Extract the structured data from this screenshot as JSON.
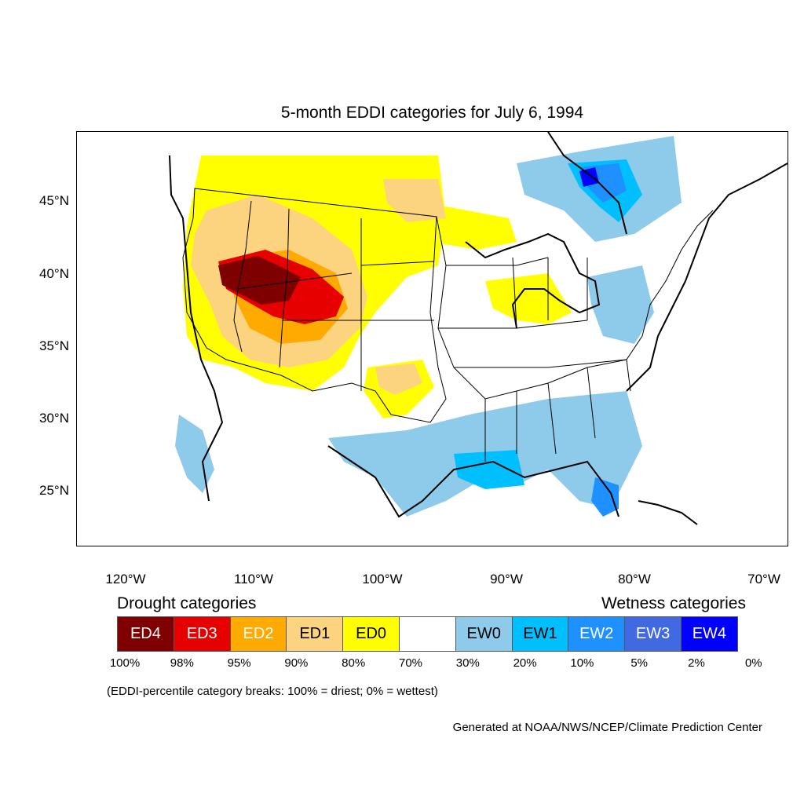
{
  "title": "5-month EDDI categories for July 6, 1994",
  "lat_labels": [
    "45°N",
    "40°N",
    "35°N",
    "30°N",
    "25°N"
  ],
  "lon_labels": [
    "120°W",
    "110°W",
    "100°W",
    "90°W",
    "80°W",
    "70°W"
  ],
  "legend": {
    "drought_heading": "Drought categories",
    "wetness_heading": "Wetness categories",
    "categories": [
      {
        "label": "ED4",
        "color": "#7f0000",
        "text_color": "#ffffff"
      },
      {
        "label": "ED3",
        "color": "#e60000",
        "text_color": "#ffffff"
      },
      {
        "label": "ED2",
        "color": "#ffaa00",
        "text_color": "#ffffff"
      },
      {
        "label": "ED1",
        "color": "#fcd37f",
        "text_color": "#000000"
      },
      {
        "label": "ED0",
        "color": "#ffff00",
        "text_color": "#000000"
      },
      {
        "label": "",
        "color": "#ffffff",
        "text_color": "#000000"
      },
      {
        "label": "EW0",
        "color": "#8ecae9",
        "text_color": "#000000"
      },
      {
        "label": "EW1",
        "color": "#00bfff",
        "text_color": "#000000"
      },
      {
        "label": "EW2",
        "color": "#1e90ff",
        "text_color": "#ffffff"
      },
      {
        "label": "EW3",
        "color": "#4169e1",
        "text_color": "#ffffff"
      },
      {
        "label": "EW4",
        "color": "#0000ff",
        "text_color": "#ffffff"
      }
    ],
    "breaks": [
      "100%",
      "98%",
      "95%",
      "90%",
      "80%",
      "70%",
      "30%",
      "20%",
      "10%",
      "5%",
      "2%",
      "0%"
    ]
  },
  "note": "(EDDI-percentile category breaks: 100% = driest; 0% = wettest)",
  "credit": "Generated at NOAA/NWS/NCEP/Climate Prediction Center"
}
